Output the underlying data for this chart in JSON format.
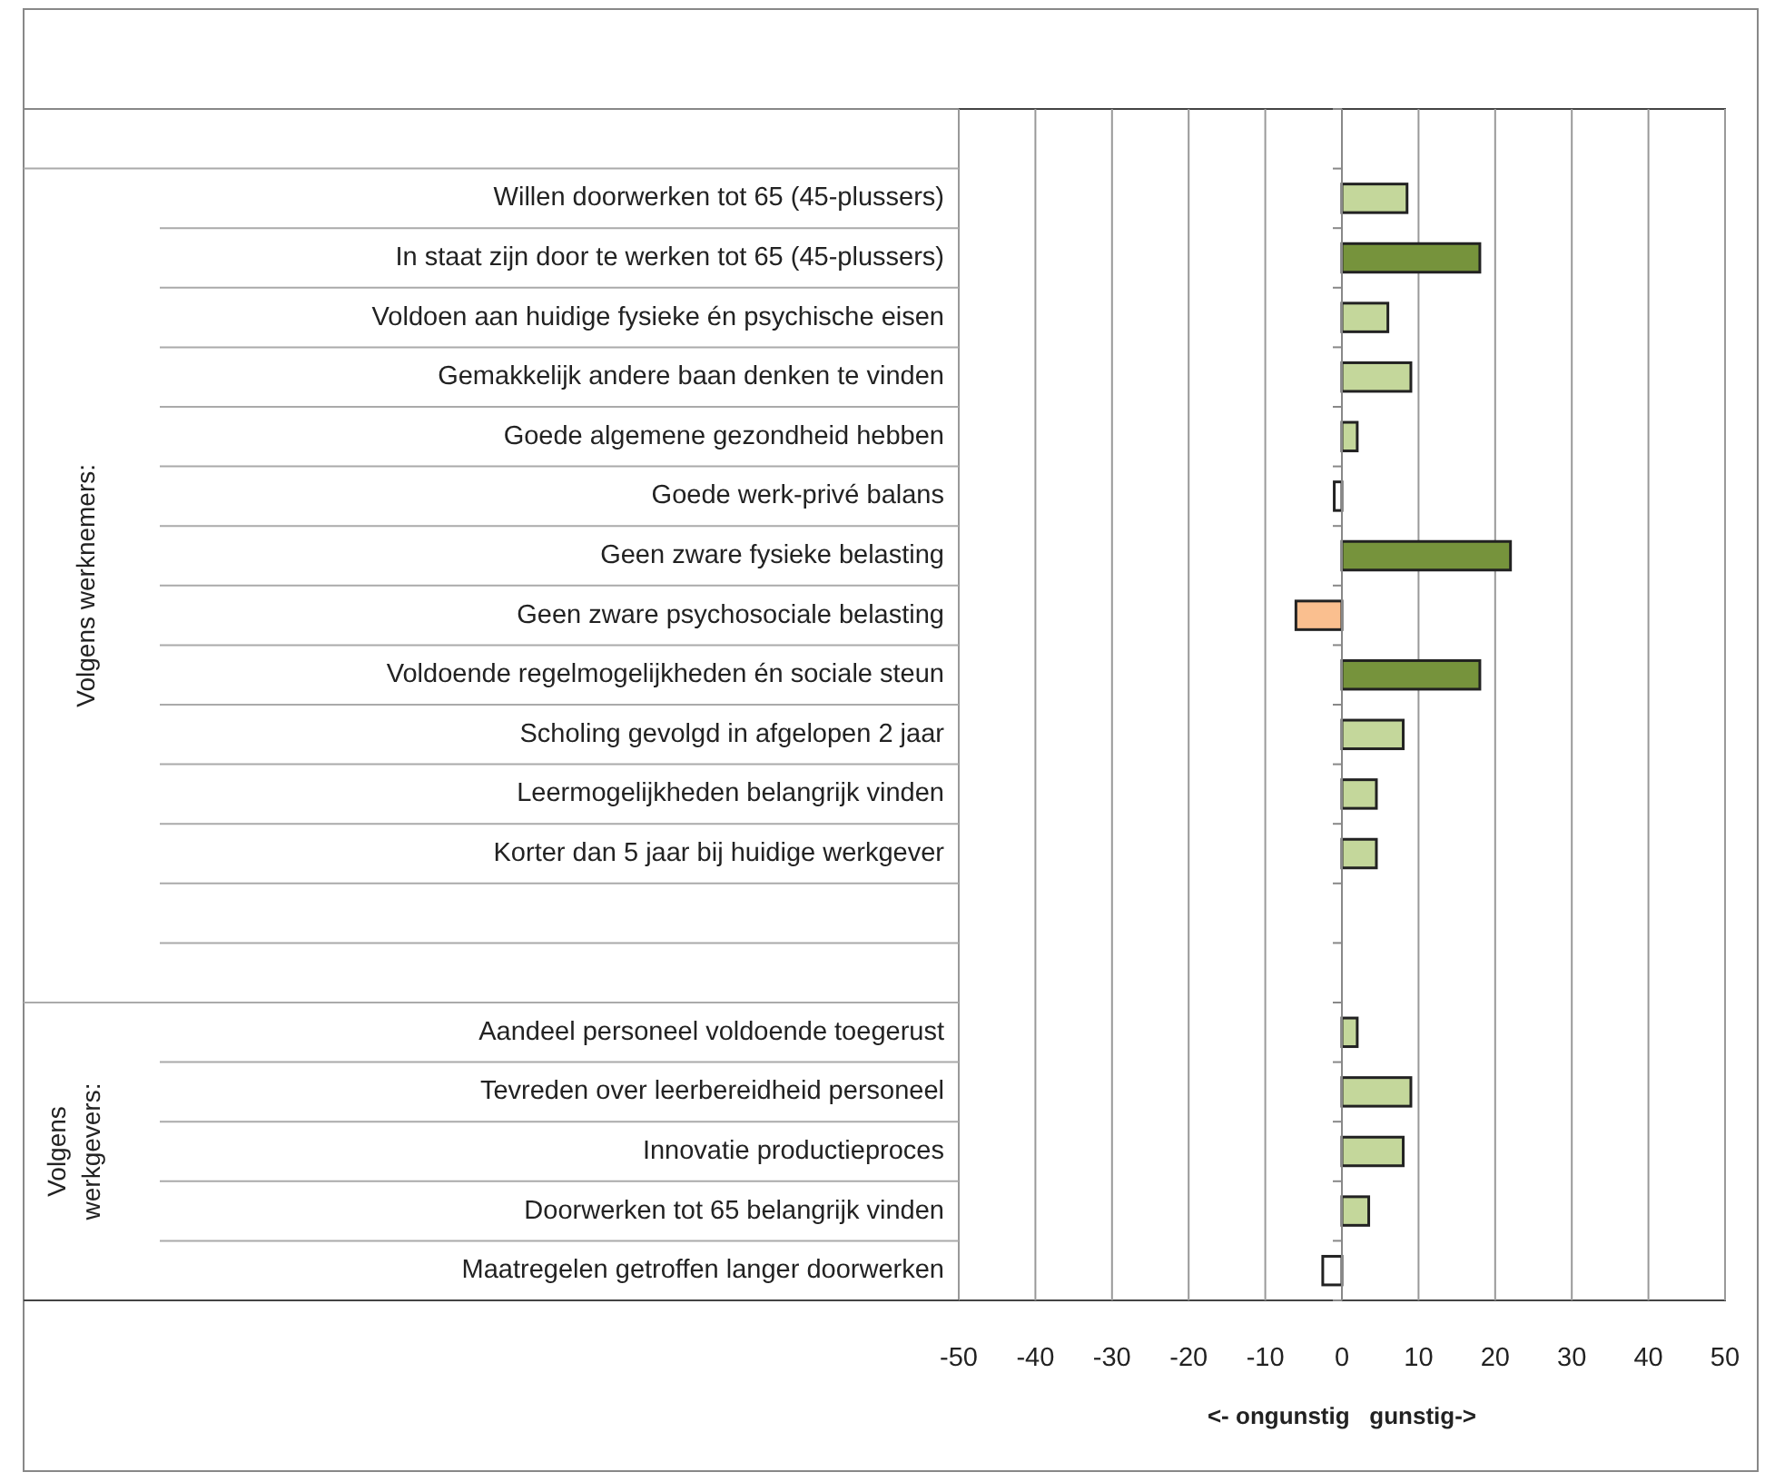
{
  "chart_data": {
    "type": "bar",
    "orientation": "horizontal",
    "categories": [
      null,
      "Willen doorwerken tot 65 (45-plussers)",
      "In staat zijn door te werken tot 65 (45-plussers)",
      "Voldoen aan huidige fysieke én psychische eisen",
      "Gemakkelijk andere baan denken te vinden",
      "Goede algemene gezondheid hebben",
      "Goede werk-privé balans",
      "Geen zware fysieke belasting",
      "Geen zware psychosociale belasting",
      "Voldoende regelmogelijkheden én sociale steun",
      "Scholing gevolgd in afgelopen 2 jaar",
      "Leermogelijkheden belangrijk vinden",
      "Korter dan 5 jaar bij huidige werkgever",
      null,
      null,
      "Aandeel personeel voldoende toegerust",
      "Tevreden over leerbereidheid personeel",
      "Innovatie productieproces",
      "Doorwerken tot 65 belangrijk vinden",
      "Maatregelen getroffen langer doorwerken"
    ],
    "values": [
      null,
      8.5,
      18,
      6,
      9,
      2,
      -1,
      22,
      -6,
      18,
      8,
      4.5,
      4.5,
      null,
      null,
      2,
      9,
      8,
      3.5,
      -2.5
    ],
    "colors": [
      null,
      "#c4d79b",
      "#76933c",
      "#c4d79b",
      "#c4d79b",
      "#c4d79b",
      "#ffffff",
      "#76933c",
      "#fabf8f",
      "#76933c",
      "#c4d79b",
      "#c4d79b",
      "#c4d79b",
      null,
      null,
      "#c4d79b",
      "#c4d79b",
      "#c4d79b",
      "#c4d79b",
      "#ffffff"
    ],
    "xlim": [
      -50,
      50
    ],
    "xticks": [
      -50,
      -40,
      -30,
      -20,
      -10,
      0,
      10,
      20,
      30,
      40,
      50
    ],
    "xlabel": "<- ongunstig   gunstig->",
    "annotations": [
      "Volgens werknemers:",
      "Volgens werkgevers:"
    ],
    "grid": "x"
  }
}
